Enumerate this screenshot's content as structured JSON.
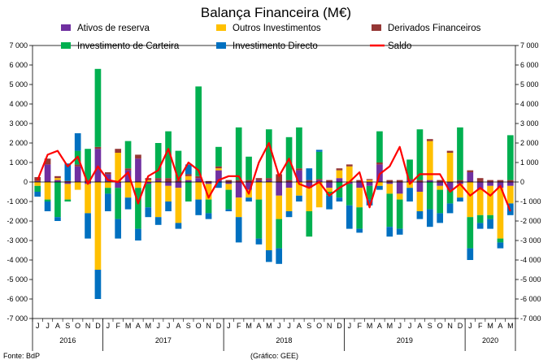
{
  "chart_data": {
    "type": "bar",
    "title": "Balança Financeira (M€)",
    "source": "Fonte: BdP",
    "credit": "(Gráfico: GEE)",
    "stacked": true,
    "ylim": [
      -7000,
      7000
    ],
    "ytick_step": 1000,
    "ytick_labels": [
      "-7 000",
      "-6 000",
      "-5 000",
      "-4 000",
      "-3 000",
      "-2 000",
      "-1 000",
      "0",
      "1 000",
      "2 000",
      "3 000",
      "4 000",
      "5 000",
      "6 000",
      "7 000"
    ],
    "legend_position": "top",
    "categories": [
      "J",
      "J",
      "A",
      "S",
      "O",
      "N",
      "D",
      "J",
      "F",
      "M",
      "A",
      "M",
      "J",
      "J",
      "A",
      "S",
      "O",
      "N",
      "D",
      "J",
      "F",
      "M",
      "A",
      "M",
      "J",
      "J",
      "A",
      "S",
      "O",
      "N",
      "D",
      "J",
      "F",
      "M",
      "A",
      "M",
      "J",
      "J",
      "A",
      "S",
      "O",
      "N",
      "D",
      "J",
      "F",
      "M",
      "A",
      "M"
    ],
    "years": [
      {
        "label": "2016",
        "start": 0,
        "count": 7
      },
      {
        "label": "2017",
        "start": 7,
        "count": 12
      },
      {
        "label": "2018",
        "start": 19,
        "count": 12
      },
      {
        "label": "2019",
        "start": 31,
        "count": 12
      },
      {
        "label": "2020",
        "start": 43,
        "count": 5
      }
    ],
    "series": [
      {
        "name": "Ativos de reserva",
        "color": "#7030A0",
        "type": "bar",
        "values": [
          50,
          900,
          100,
          -100,
          800,
          -100,
          1700,
          400,
          -300,
          600,
          1200,
          -100,
          100,
          -200,
          -300,
          100,
          200,
          -100,
          600,
          -100,
          -800,
          -400,
          100,
          100,
          -700,
          -300,
          600,
          -300,
          100,
          -300,
          200,
          -100,
          -300,
          -200,
          900,
          -100,
          -600,
          100,
          -500,
          100,
          -200,
          -400,
          -100,
          500,
          -400,
          -200,
          -300,
          -200
        ]
      },
      {
        "name": "Outros Investimentos",
        "color": "#FFC000",
        "type": "bar",
        "values": [
          -200,
          -900,
          100,
          -800,
          -400,
          -1500,
          -4500,
          -300,
          1500,
          -800,
          -300,
          100,
          -1800,
          -800,
          -1800,
          200,
          -900,
          -800,
          100,
          -300,
          -1000,
          -400,
          -900,
          -3500,
          -1200,
          -1200,
          -700,
          -1200,
          -1300,
          -200,
          400,
          800,
          -1000,
          100,
          -200,
          -500,
          -300,
          -300,
          -1000,
          2000,
          -200,
          1500,
          -700,
          -1800,
          -1300,
          -1500,
          -2600,
          -900
        ]
      },
      {
        "name": "Derivados Financeiros",
        "color": "#953735",
        "type": "bar",
        "values": [
          200,
          300,
          100,
          50,
          100,
          100,
          100,
          100,
          200,
          100,
          200,
          100,
          100,
          200,
          100,
          100,
          100,
          50,
          100,
          100,
          100,
          100,
          100,
          100,
          400,
          100,
          100,
          100,
          50,
          100,
          100,
          100,
          100,
          50,
          100,
          100,
          100,
          50,
          100,
          100,
          100,
          100,
          100,
          100,
          200,
          100,
          100,
          100
        ]
      },
      {
        "name": "Investimento de Carteira",
        "color": "#00B050",
        "type": "bar",
        "values": [
          -300,
          -100,
          -1800,
          -100,
          700,
          1600,
          4000,
          -300,
          -1600,
          1400,
          -2100,
          -1200,
          1800,
          2400,
          1500,
          -1000,
          4600,
          -700,
          1000,
          -1000,
          2700,
          1200,
          -2000,
          2500,
          -1500,
          2200,
          2100,
          -1300,
          1400,
          -200,
          -800,
          -1100,
          -1100,
          -700,
          1600,
          -1700,
          -1500,
          1000,
          2600,
          -1400,
          -1200,
          -700,
          2700,
          -1600,
          -400,
          -200,
          -200,
          2300
        ]
      },
      {
        "name": "Investimento Directo",
        "color": "#0070C0",
        "type": "bar",
        "values": [
          -250,
          -500,
          -200,
          900,
          900,
          -1300,
          -1500,
          -900,
          -1000,
          -600,
          -600,
          -500,
          -400,
          -500,
          -300,
          500,
          -800,
          -300,
          -300,
          -100,
          -1300,
          -200,
          -300,
          -600,
          -800,
          -300,
          -300,
          600,
          100,
          -700,
          -200,
          -1200,
          -200,
          -300,
          -200,
          -500,
          -300,
          -700,
          -400,
          -900,
          -500,
          -500,
          -200,
          -600,
          -300,
          -500,
          -300,
          -600
        ]
      },
      {
        "name": "Saldo",
        "color": "#FF0000",
        "type": "line",
        "values": [
          100,
          1400,
          1600,
          800,
          1300,
          -100,
          800,
          100,
          0,
          500,
          -1100,
          300,
          600,
          1700,
          100,
          1000,
          600,
          -800,
          100,
          300,
          300,
          -600,
          1000,
          2000,
          300,
          1200,
          -100,
          -300,
          0,
          -700,
          -300,
          0,
          500,
          -1300,
          400,
          800,
          1800,
          -100,
          400,
          400,
          400,
          -500,
          -100,
          -700,
          -300,
          -700,
          -200,
          -1500
        ]
      }
    ]
  }
}
